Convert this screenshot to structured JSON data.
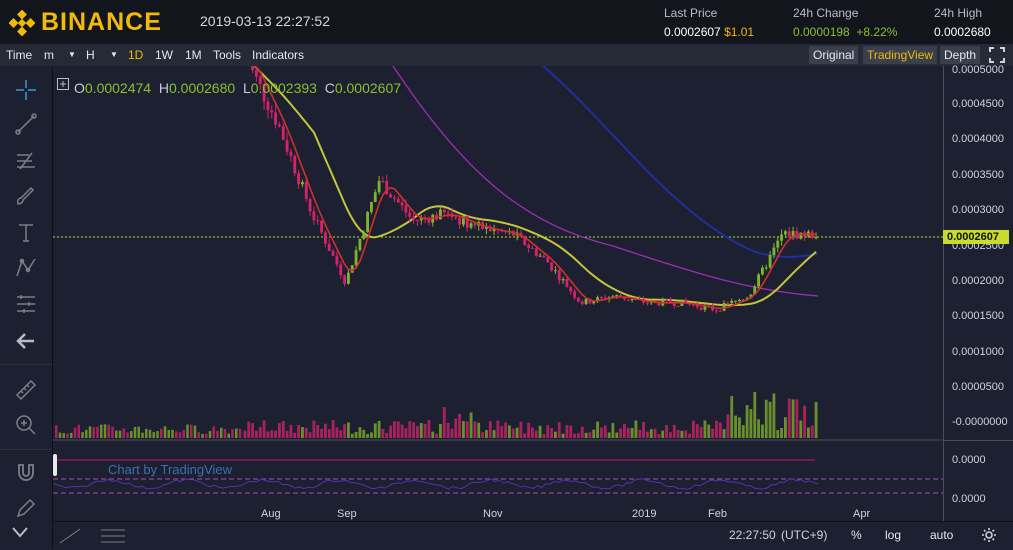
{
  "header": {
    "brand": "BINANCE",
    "datetime": "2019-03-13 22:27:52",
    "last_price_label": "Last Price",
    "last_price": "0.0002607",
    "last_price_usd": "$1.01",
    "change_label": "24h Change",
    "change_value": "0.0000198",
    "change_pct": "+8.22%",
    "high_label": "24h High",
    "high_value": "0.0002680",
    "colors": {
      "brand": "#f0b90b",
      "up": "#8bbf2c"
    }
  },
  "toolbar": {
    "left": [
      "Time",
      "m",
      "H",
      "1D",
      "1W",
      "1M",
      "Tools",
      "Indicators"
    ],
    "active_interval": "1D",
    "right": [
      "Original",
      "TradingView",
      "Depth"
    ],
    "active_view": "TradingView"
  },
  "ohlc": {
    "o_label": "O",
    "o": "0.0002474",
    "h_label": "H",
    "h": "0.0002680",
    "l_label": "L",
    "l": "0.0002393",
    "c_label": "C",
    "c": "0.0002607"
  },
  "price_axis": [
    "0.0005000",
    "0.0004500",
    "0.0004000",
    "0.0003500",
    "0.0003000",
    "0.0002500",
    "0.0002000",
    "0.0001500",
    "0.0001000",
    "0.0000500",
    "-0.0000000"
  ],
  "current_price_tag": "0.0002607",
  "sub_axis": [
    "0.0000",
    "0.0000"
  ],
  "x_axis": [
    "Aug",
    "Sep",
    "Nov",
    "2019",
    "Feb",
    "Apr"
  ],
  "watermark": "Chart by TradingView",
  "status": {
    "time": "22:27:50",
    "tz": "(UTC+9)",
    "pct": "%",
    "log": "log",
    "auto": "auto"
  },
  "chart_data": {
    "type": "line",
    "x": [
      "Jul",
      "Aug",
      "Aug",
      "Aug",
      "Sep",
      "Sep",
      "Oct",
      "Oct",
      "Nov",
      "Nov",
      "Dec",
      "Dec",
      "Jan",
      "Jan",
      "Feb",
      "Feb",
      "Mar",
      "Mar"
    ],
    "series": [
      {
        "values": [
          0.00052,
          0.00042,
          0.00029,
          0.00019,
          0.00034,
          0.00028,
          0.00029,
          0.00027,
          0.00026,
          0.00022,
          0.00016,
          0.00017,
          0.00016,
          0.00016,
          0.00015,
          0.00017,
          0.00026,
          0.00026
        ]
      }
    ],
    "ylim": [
      -2e-05,
      0.0005
    ],
    "grid": false
  }
}
